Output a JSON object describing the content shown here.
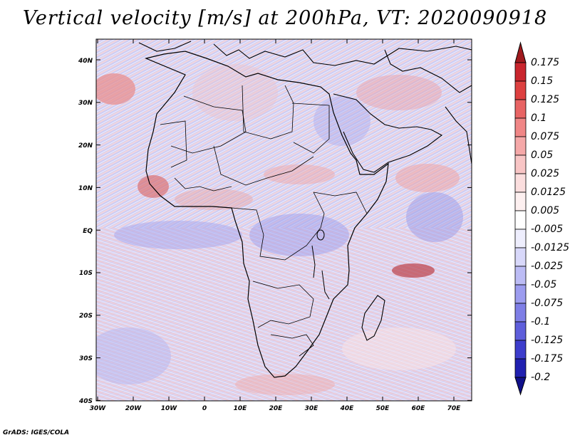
{
  "title": "Vertical velocity [m/s] at 200hPa, VT: 2020090918",
  "footer": "GrADS: IGES/COLA",
  "lat_ticks": [
    "40N",
    "30N",
    "20N",
    "10N",
    "EQ",
    "10S",
    "20S",
    "30S",
    "40S"
  ],
  "lon_ticks": [
    "30W",
    "20W",
    "10W",
    "0",
    "10E",
    "20E",
    "30E",
    "40E",
    "50E",
    "60E",
    "70E"
  ],
  "colorbar": {
    "labels": [
      "0.175",
      "0.15",
      "0.125",
      "0.1",
      "0.075",
      "0.05",
      "0.025",
      "0.0125",
      "0.005",
      "-0.005",
      "-0.0125",
      "-0.025",
      "-0.05",
      "-0.075",
      "-0.1",
      "-0.125",
      "-0.175",
      "-0.2"
    ],
    "colors": [
      "#a01a1e",
      "#c9252d",
      "#dd4040",
      "#e86464",
      "#f08686",
      "#f5a8a8",
      "#f8c5c5",
      "#fbdede",
      "#fdf0f0",
      "#ffffff",
      "#eeeefd",
      "#d8d8fa",
      "#bcbcf5",
      "#9c9cef",
      "#7e7ee6",
      "#5e5edb",
      "#3d3dcc",
      "#2020b0",
      "#10108a"
    ]
  }
}
